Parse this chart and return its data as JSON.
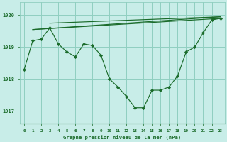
{
  "title": "Graphe pression niveau de la mer (hPa)",
  "bg_color": "#c8ede8",
  "grid_color": "#90cfc0",
  "line_color": "#1a6b2a",
  "marker_color": "#1a6b2a",
  "xlim": [
    -0.5,
    23.5
  ],
  "ylim": [
    1016.6,
    1020.4
  ],
  "yticks": [
    1017,
    1018,
    1019,
    1020
  ],
  "xticks": [
    0,
    1,
    2,
    3,
    4,
    5,
    6,
    7,
    8,
    9,
    10,
    11,
    12,
    13,
    14,
    15,
    16,
    17,
    18,
    19,
    20,
    21,
    22,
    23
  ],
  "series_main": {
    "x": [
      0,
      1,
      2,
      3,
      4,
      5,
      6,
      7,
      8,
      9,
      10,
      11,
      12,
      13,
      14,
      15,
      16,
      17,
      18,
      19,
      20,
      21,
      22,
      23
    ],
    "y": [
      1018.3,
      1019.2,
      1019.25,
      1019.6,
      1019.1,
      1018.85,
      1018.7,
      1019.1,
      1019.05,
      1018.75,
      1018.0,
      1017.75,
      1017.45,
      1017.1,
      1017.1,
      1017.65,
      1017.65,
      1017.75,
      1018.1,
      1018.85,
      1019.0,
      1019.45,
      1019.85,
      1019.9
    ]
  },
  "series_upper1": {
    "x": [
      1,
      23
    ],
    "y": [
      1019.55,
      1019.9
    ]
  },
  "series_upper2": {
    "x": [
      1,
      23
    ],
    "y": [
      1019.55,
      1019.95
    ]
  },
  "series_upper3": {
    "x": [
      3,
      23
    ],
    "y": [
      1019.75,
      1019.95
    ]
  },
  "figsize": [
    3.2,
    2.0
  ],
  "dpi": 100
}
